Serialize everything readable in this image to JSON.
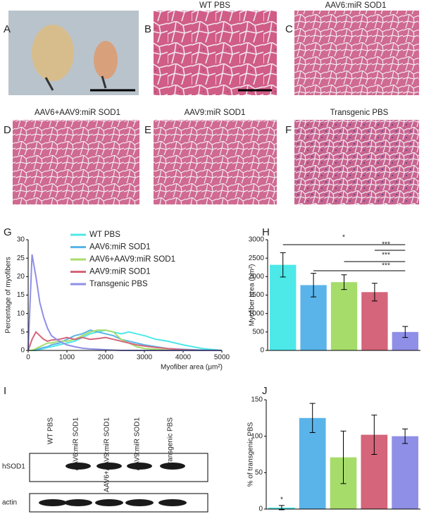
{
  "image_panels": [
    {
      "label": "A"
    },
    {
      "label": "B",
      "title": "WT PBS"
    },
    {
      "label": "C",
      "title": "AAV6:miR SOD1"
    },
    {
      "label": "D",
      "title": "AAV6+AAV9:miR SOD1"
    },
    {
      "label": "E",
      "title": "AAV9:miR SOD1"
    },
    {
      "label": "F",
      "title": "Transgenic PBS"
    }
  ],
  "chart_data": [
    {
      "type": "line",
      "label": "G",
      "ylabel": "Percentage of myofibers",
      "xlabel": "Myofiber area (μm²)",
      "x": [
        0,
        100,
        200,
        300,
        400,
        500,
        600,
        800,
        1000,
        1200,
        1400,
        1600,
        1800,
        2000,
        2200,
        2400,
        2600,
        2800,
        3000,
        3300,
        3600,
        4000,
        4500,
        5000
      ],
      "series": [
        {
          "name": "WT PBS",
          "color": "#4de8e8",
          "values": [
            0,
            0,
            0,
            0.3,
            0.5,
            0.8,
            1,
            1.5,
            2,
            2.5,
            3.5,
            4.5,
            5,
            5.5,
            5,
            4.5,
            5,
            4.5,
            4,
            3,
            2.5,
            1.5,
            0.5,
            0
          ]
        },
        {
          "name": "AAV6:miR SOD1",
          "color": "#5ab4ea",
          "values": [
            0,
            0,
            0.3,
            0.5,
            0.8,
            1,
            1.5,
            2,
            3,
            4,
            4.5,
            5.5,
            5,
            4.5,
            4,
            3,
            2.5,
            2,
            1.5,
            1,
            0.5,
            0.3,
            0.1,
            0
          ]
        },
        {
          "name": "AAV6+AAV9:miR SOD1",
          "color": "#a6dc6a",
          "values": [
            0,
            0,
            0.5,
            1,
            1.5,
            2,
            2,
            2.5,
            2.5,
            3,
            4,
            5,
            5.5,
            5.5,
            5,
            3,
            2,
            1,
            0.5,
            0.3,
            0.1,
            0,
            0,
            0
          ]
        },
        {
          "name": "AAV9:miR SOD1",
          "color": "#d4657a",
          "values": [
            0,
            3,
            5,
            4,
            3,
            2.5,
            2.8,
            3,
            3.5,
            3,
            3.5,
            3,
            3.2,
            3.5,
            3,
            2.5,
            2,
            1.5,
            1.2,
            0.8,
            0.5,
            0.2,
            0,
            0
          ]
        },
        {
          "name": "Transgenic PBS",
          "color": "#8f8fe8",
          "values": [
            0,
            26,
            20,
            13,
            9,
            6,
            4,
            2.5,
            1.5,
            1,
            0.6,
            0.4,
            0.3,
            0.2,
            0.1,
            0,
            0,
            0,
            0,
            0,
            0,
            0,
            0,
            0
          ]
        }
      ],
      "xlim": [
        0,
        5000
      ],
      "xticks": [
        0,
        1000,
        2000,
        3000,
        4000,
        5000
      ],
      "ylim": [
        0,
        30
      ],
      "yticks": [
        0,
        5,
        10,
        15,
        20,
        25,
        30
      ]
    },
    {
      "type": "bar",
      "label": "H",
      "ylabel": "Myofiber area (μm²)",
      "categories": [
        null,
        null,
        null,
        null,
        null
      ],
      "values": [
        2320,
        1770,
        1850,
        1580,
        500
      ],
      "errors": [
        330,
        320,
        200,
        240,
        150
      ],
      "colors": [
        "#4de8e8",
        "#5ab4ea",
        "#a6dc6a",
        "#d4657a",
        "#8f8fe8"
      ],
      "annotations": [
        "*",
        "***",
        "***",
        "***"
      ],
      "ylim": [
        0,
        3000
      ],
      "yticks": [
        0,
        500,
        1000,
        1500,
        2000,
        2500,
        3000
      ]
    },
    {
      "type": "bar",
      "label": "J",
      "ylabel": "% of transgenic PBS",
      "categories": [
        null,
        null,
        null,
        null,
        null
      ],
      "values": [
        2,
        125,
        71,
        102,
        100
      ],
      "errors": [
        3,
        20,
        36,
        27,
        10
      ],
      "colors": [
        "#4de8e8",
        "#5ab4ea",
        "#a6dc6a",
        "#d4657a",
        "#8f8fe8"
      ],
      "annotations": [
        "*"
      ],
      "ylim": [
        0,
        150
      ],
      "yticks": [
        0,
        50,
        100,
        150
      ]
    }
  ],
  "blot": {
    "label": "I",
    "lanes": [
      "WT PBS",
      "AAV6:miR SOD1",
      "AAV6+AAV9:miR SOD1",
      "AAV9:miR SOD1",
      "Transgenic PBS"
    ],
    "rows": [
      "hSOD1",
      "actin"
    ]
  }
}
